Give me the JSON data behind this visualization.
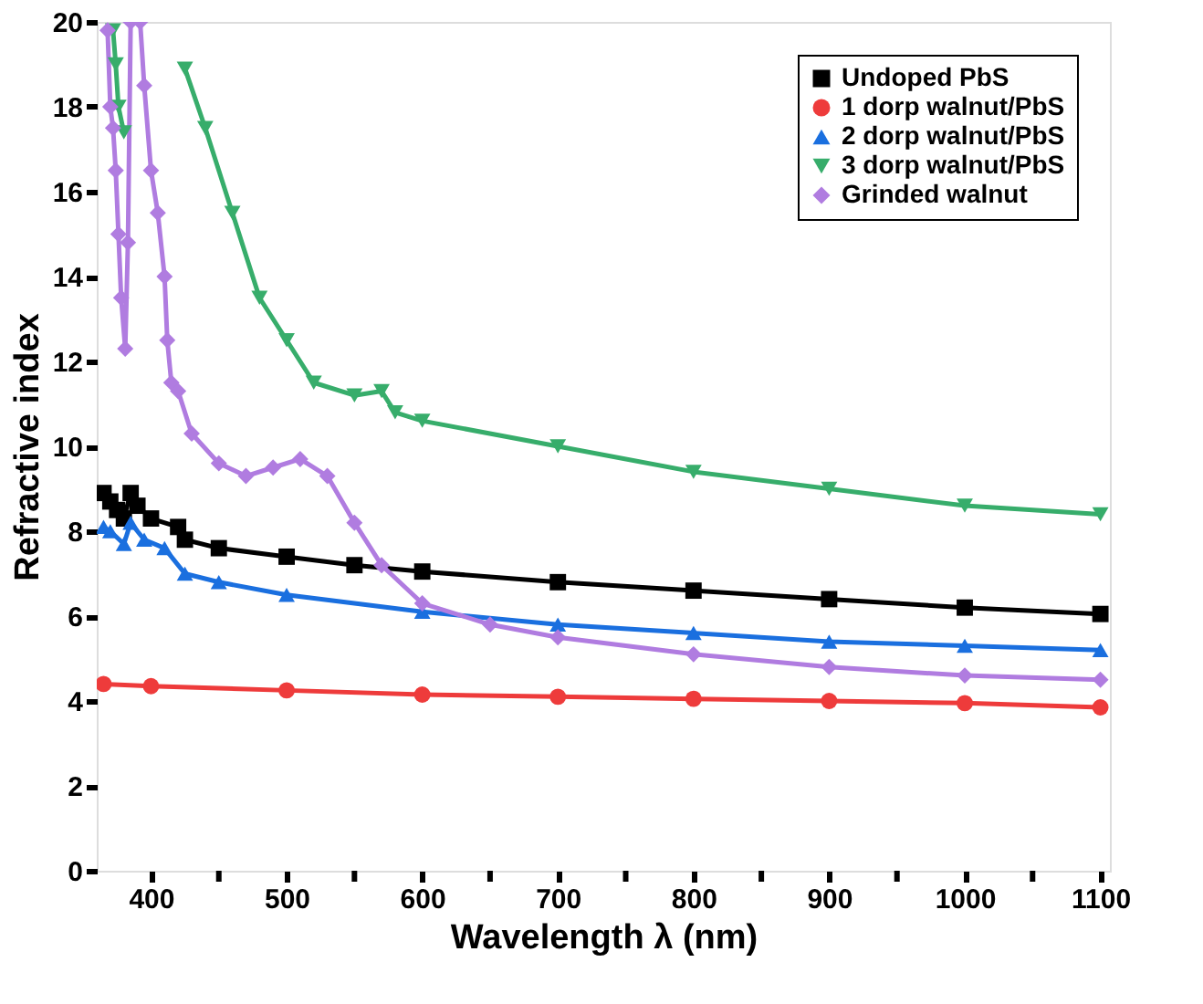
{
  "chart_data": {
    "type": "line",
    "xlabel": "Wavelength λ (nm)",
    "ylabel": "Refractive index",
    "xlim": [
      360,
      1107
    ],
    "ylim": [
      0,
      20
    ],
    "xticks": [
      400,
      {
        "value": 450,
        "label": null
      },
      500,
      {
        "value": 550,
        "label": null
      },
      600,
      {
        "value": 650,
        "label": null
      },
      700,
      {
        "value": 750,
        "label": null
      },
      800,
      {
        "value": 850,
        "label": null
      },
      900,
      {
        "value": 950,
        "label": null
      },
      1000,
      {
        "value": 1050,
        "label": null
      },
      1100
    ],
    "yticks": [
      0,
      2,
      4,
      6,
      8,
      10,
      12,
      14,
      16,
      18,
      20
    ],
    "grid": false,
    "legend": "top right",
    "series": [
      {
        "name": "Undoped PbS",
        "color": "#000000",
        "marker": "square",
        "x": [
          365,
          370,
          375,
          380,
          385,
          390,
          400,
          420,
          425,
          450,
          500,
          550,
          600,
          700,
          800,
          900,
          1000,
          1100
        ],
        "values": [
          8.9,
          8.7,
          8.5,
          8.3,
          8.9,
          8.6,
          8.3,
          8.1,
          7.8,
          7.6,
          7.4,
          7.2,
          7.05,
          6.8,
          6.6,
          6.4,
          6.2,
          6.05
        ]
      },
      {
        "name": "1 dorp walnut/PbS",
        "color": "#ee3b3b",
        "marker": "circle",
        "x": [
          365,
          400,
          500,
          600,
          700,
          800,
          900,
          1000,
          1100
        ],
        "values": [
          4.4,
          4.35,
          4.25,
          4.15,
          4.1,
          4.05,
          4.0,
          3.95,
          3.85
        ]
      },
      {
        "name": "2 dorp walnut/PbS",
        "color": "#1a6fdf",
        "marker": "triangle",
        "x": [
          365,
          370,
          380,
          385,
          395,
          410,
          425,
          450,
          500,
          600,
          700,
          800,
          900,
          1000,
          1100
        ],
        "values": [
          8.1,
          8.0,
          7.7,
          8.2,
          7.8,
          7.6,
          7.0,
          6.8,
          6.5,
          6.1,
          5.8,
          5.6,
          5.4,
          5.3,
          5.2
        ]
      },
      {
        "name": "3 dorp walnut/PbS",
        "color": "#37ad6b",
        "marker": "triangle-down",
        "x": [
          372,
          374,
          376,
          380,
          383,
          425,
          440,
          460,
          480,
          500,
          520,
          550,
          570,
          580,
          600,
          700,
          800,
          900,
          1000,
          1100
        ],
        "values": [
          19.8,
          19.0,
          18.0,
          17.4,
          null,
          18.9,
          17.5,
          15.5,
          13.5,
          12.5,
          11.5,
          11.2,
          11.3,
          10.8,
          10.6,
          10.0,
          9.4,
          9.0,
          8.6,
          8.4
        ]
      },
      {
        "name": "Grinded walnut",
        "color": "#b07ce0",
        "marker": "diamond",
        "x": [
          368,
          370,
          372,
          374,
          376,
          378,
          381,
          383,
          385,
          392,
          395,
          400,
          405,
          410,
          412,
          415,
          420,
          430,
          450,
          470,
          490,
          510,
          530,
          550,
          570,
          600,
          650,
          700,
          800,
          900,
          1000,
          1100
        ],
        "values": [
          19.8,
          18.0,
          17.5,
          16.5,
          15.0,
          13.5,
          12.3,
          14.8,
          20,
          20,
          18.5,
          16.5,
          15.5,
          14.0,
          12.5,
          11.5,
          11.3,
          10.3,
          9.6,
          9.3,
          9.5,
          9.7,
          9.3,
          8.2,
          7.2,
          6.3,
          5.8,
          5.5,
          5.1,
          4.8,
          4.6,
          4.5
        ]
      }
    ]
  }
}
